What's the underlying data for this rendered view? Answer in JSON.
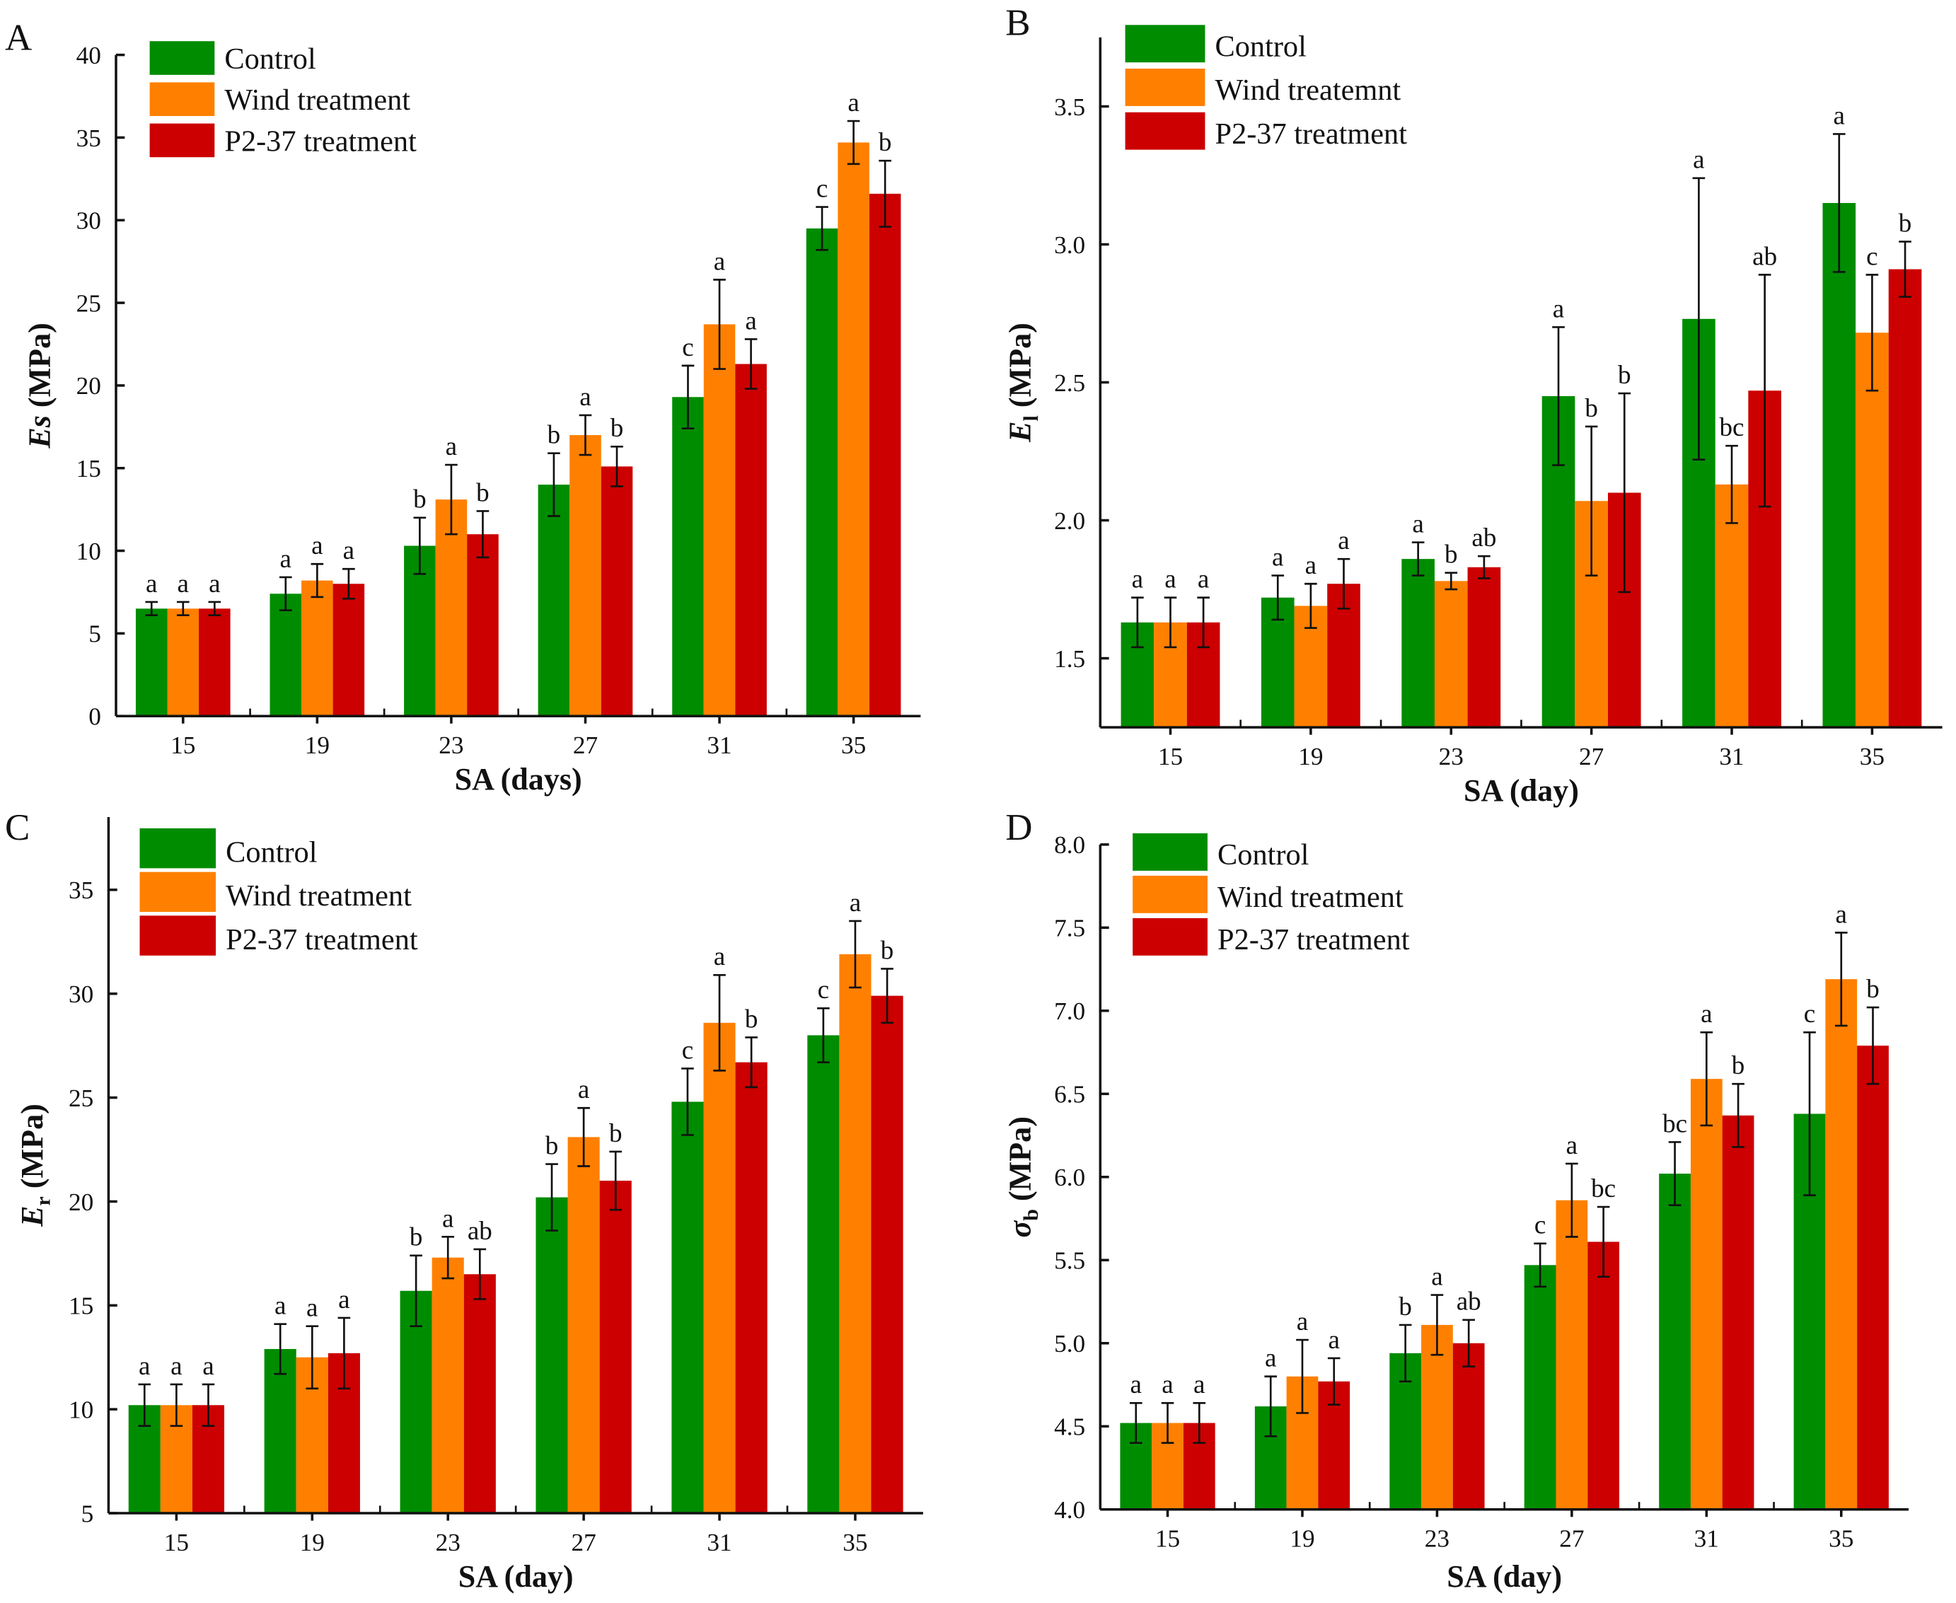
{
  "colors": {
    "Control": "#008C00",
    "Wind": "#FF8000",
    "P2-37": "#CC0000"
  },
  "chart_data": [
    {
      "panel": "A",
      "type": "bar",
      "categories": [
        "15",
        "19",
        "23",
        "27",
        "31",
        "35"
      ],
      "xlabel": "SA (days)",
      "ylabel_symbol": "E",
      "ylabel_subscript": "s",
      "ylabel_unit": " (MPa)",
      "ylim": [
        0,
        40
      ],
      "yticks": [
        0,
        5,
        10,
        15,
        20,
        25,
        30,
        35,
        40
      ],
      "tick_decimals": 0,
      "legend": [
        "Control",
        "Wind treatment",
        "P2-37 treatment"
      ],
      "legend_position": "top-left",
      "grid": false,
      "series": [
        {
          "name": "Control",
          "values": [
            6.5,
            7.4,
            10.3,
            14.0,
            19.3,
            29.5
          ],
          "errors": [
            0.4,
            1.0,
            1.7,
            1.9,
            1.9,
            1.3
          ],
          "letters": [
            "a",
            "a",
            "b",
            "b",
            "c",
            "c"
          ]
        },
        {
          "name": "Wind treatment",
          "values": [
            6.5,
            8.2,
            13.1,
            17.0,
            23.7,
            34.7
          ],
          "errors": [
            0.4,
            1.0,
            2.1,
            1.2,
            2.7,
            1.3
          ],
          "letters": [
            "a",
            "a",
            "a",
            "a",
            "a",
            "a"
          ]
        },
        {
          "name": "P2-37 treatment",
          "values": [
            6.5,
            8.0,
            11.0,
            15.1,
            21.3,
            31.6
          ],
          "errors": [
            0.4,
            0.9,
            1.4,
            1.2,
            1.5,
            2.0
          ],
          "letters": [
            "a",
            "a",
            "b",
            "b",
            "a",
            "b"
          ]
        }
      ]
    },
    {
      "panel": "B",
      "type": "bar",
      "categories": [
        "15",
        "19",
        "23",
        "27",
        "31",
        "35"
      ],
      "xlabel": "SA (day)",
      "ylabel_symbol": "E",
      "ylabel_subscript": "l",
      "ylabel_unit": " (MPa)",
      "ylim": [
        1.25,
        3.75
      ],
      "yticks": [
        1.5,
        2.0,
        2.5,
        3.0,
        3.5
      ],
      "tick_decimals": 1,
      "legend": [
        "Control",
        "Wind treatemnt",
        "P2-37 treatment"
      ],
      "legend_position": "top-left",
      "grid": false,
      "series": [
        {
          "name": "Control",
          "values": [
            1.63,
            1.72,
            1.86,
            2.45,
            2.73,
            3.15
          ],
          "errors": [
            0.09,
            0.08,
            0.06,
            0.25,
            0.51,
            0.25
          ],
          "letters": [
            "a",
            "a",
            "a",
            "a",
            "a",
            "a"
          ]
        },
        {
          "name": "Wind treatemnt",
          "values": [
            1.63,
            1.69,
            1.78,
            2.07,
            2.13,
            2.68
          ],
          "errors": [
            0.09,
            0.08,
            0.03,
            0.27,
            0.14,
            0.21
          ],
          "letters": [
            "a",
            "a",
            "b",
            "b",
            "bc",
            "c"
          ]
        },
        {
          "name": "P2-37 treatment",
          "values": [
            1.63,
            1.77,
            1.83,
            2.1,
            2.47,
            2.91
          ],
          "errors": [
            0.09,
            0.09,
            0.04,
            0.36,
            0.42,
            0.1
          ],
          "letters": [
            "a",
            "a",
            "ab",
            "b",
            "ab",
            "b"
          ]
        }
      ]
    },
    {
      "panel": "C",
      "type": "bar",
      "categories": [
        "15",
        "19",
        "23",
        "27",
        "31",
        "35"
      ],
      "xlabel": "SA (day)",
      "ylabel_symbol": "E",
      "ylabel_subscript": "r",
      "ylabel_unit": " (MPa)",
      "ylim": [
        5,
        38.5
      ],
      "yticks": [
        5,
        10,
        15,
        20,
        25,
        30,
        35
      ],
      "tick_decimals": 0,
      "legend": [
        "Control",
        "Wind treatment",
        "P2-37 treatment"
      ],
      "legend_position": "top-left",
      "grid": false,
      "series": [
        {
          "name": "Control",
          "values": [
            10.2,
            12.9,
            15.7,
            20.2,
            24.8,
            28.0
          ],
          "errors": [
            1.0,
            1.2,
            1.7,
            1.6,
            1.6,
            1.3
          ],
          "letters": [
            "a",
            "a",
            "b",
            "b",
            "c",
            "c"
          ]
        },
        {
          "name": "Wind treatment",
          "values": [
            10.2,
            12.5,
            17.3,
            23.1,
            28.6,
            31.9
          ],
          "errors": [
            1.0,
            1.5,
            1.0,
            1.4,
            2.3,
            1.6
          ],
          "letters": [
            "a",
            "a",
            "a",
            "a",
            "a",
            "a"
          ]
        },
        {
          "name": "P2-37 treatment",
          "values": [
            10.2,
            12.7,
            16.5,
            21.0,
            26.7,
            29.9
          ],
          "errors": [
            1.0,
            1.7,
            1.2,
            1.4,
            1.2,
            1.3
          ],
          "letters": [
            "a",
            "a",
            "ab",
            "b",
            "b",
            "b"
          ]
        }
      ]
    },
    {
      "panel": "D",
      "type": "bar",
      "categories": [
        "15",
        "19",
        "23",
        "27",
        "31",
        "35"
      ],
      "xlabel": "SA (day)",
      "ylabel_symbol": "σ",
      "ylabel_subscript": "b",
      "ylabel_unit": " (MPa)",
      "ylim": [
        4.0,
        8.0
      ],
      "yticks": [
        4.0,
        4.5,
        5.0,
        5.5,
        6.0,
        6.5,
        7.0,
        7.5,
        8.0
      ],
      "tick_decimals": 1,
      "legend": [
        "Control",
        "Wind treatment",
        "P2-37 treatment"
      ],
      "legend_position": "top-left",
      "grid": false,
      "series": [
        {
          "name": "Control",
          "values": [
            4.52,
            4.62,
            4.94,
            5.47,
            6.02,
            6.38
          ],
          "errors": [
            0.12,
            0.18,
            0.17,
            0.13,
            0.19,
            0.49
          ],
          "letters": [
            "a",
            "a",
            "b",
            "c",
            "bc",
            "c"
          ]
        },
        {
          "name": "Wind treatment",
          "values": [
            4.52,
            4.8,
            5.11,
            5.86,
            6.59,
            7.19
          ],
          "errors": [
            0.12,
            0.22,
            0.18,
            0.22,
            0.28,
            0.28
          ],
          "letters": [
            "a",
            "a",
            "a",
            "a",
            "a",
            "a"
          ]
        },
        {
          "name": "P2-37 treatment",
          "values": [
            4.52,
            4.77,
            5.0,
            5.61,
            6.37,
            6.79
          ],
          "errors": [
            0.12,
            0.14,
            0.14,
            0.21,
            0.19,
            0.23
          ],
          "letters": [
            "a",
            "a",
            "ab",
            "bc",
            "b",
            "b"
          ]
        }
      ]
    }
  ]
}
